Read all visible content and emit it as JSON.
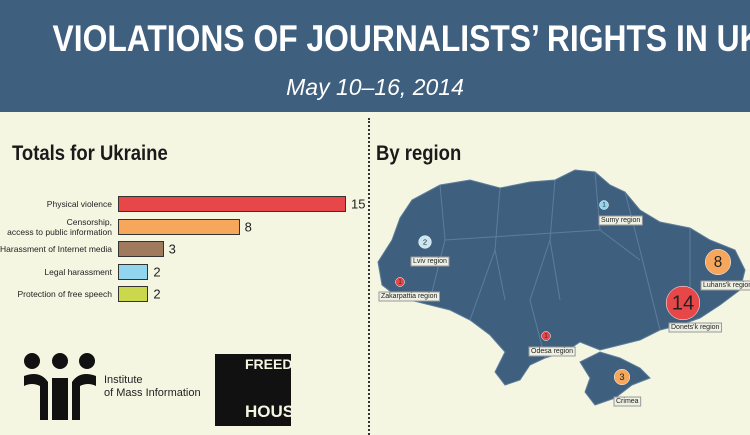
{
  "header": {
    "title": "VIOLATIONS OF JOURNALISTS’ RIGHTS IN UKRAINE",
    "subtitle": "May 10–16, 2014"
  },
  "chart_data": {
    "type": "bar",
    "orientation": "horizontal",
    "title": "Totals for Ukraine",
    "categories": [
      "Physical violence",
      "Censorship,\naccess  to public information",
      "Harassment of Internet media",
      "Legal harassment",
      "Protection of free speech"
    ],
    "values": [
      15,
      8,
      3,
      2,
      2
    ],
    "colors": [
      "#e8474a",
      "#f6a75b",
      "#a07a5c",
      "#92d5ef",
      "#cbd84b"
    ]
  },
  "map": {
    "title": "By region",
    "regions": [
      {
        "name": "Sumy region",
        "value": 1,
        "color": "#92d5ef"
      },
      {
        "name": "Lviv region",
        "value": 2,
        "color": "#c9e7f2"
      },
      {
        "name": "Zakarpattia region",
        "value": 1,
        "color": "#e8474a"
      },
      {
        "name": "Luhans'k region",
        "value": 8,
        "color": "#f6a75b"
      },
      {
        "name": "Donets'k region",
        "value": 14,
        "color": "#e8474a"
      },
      {
        "name": "Odesa region",
        "value": 1,
        "color": "#e8474a"
      },
      {
        "name": "Crimea",
        "value": 3,
        "color": "#f6a75b"
      }
    ]
  },
  "logos": {
    "imi": "Institute\nof Mass Information",
    "fh_top": "FREEDOM",
    "fh_bottom": "HOUSE"
  }
}
